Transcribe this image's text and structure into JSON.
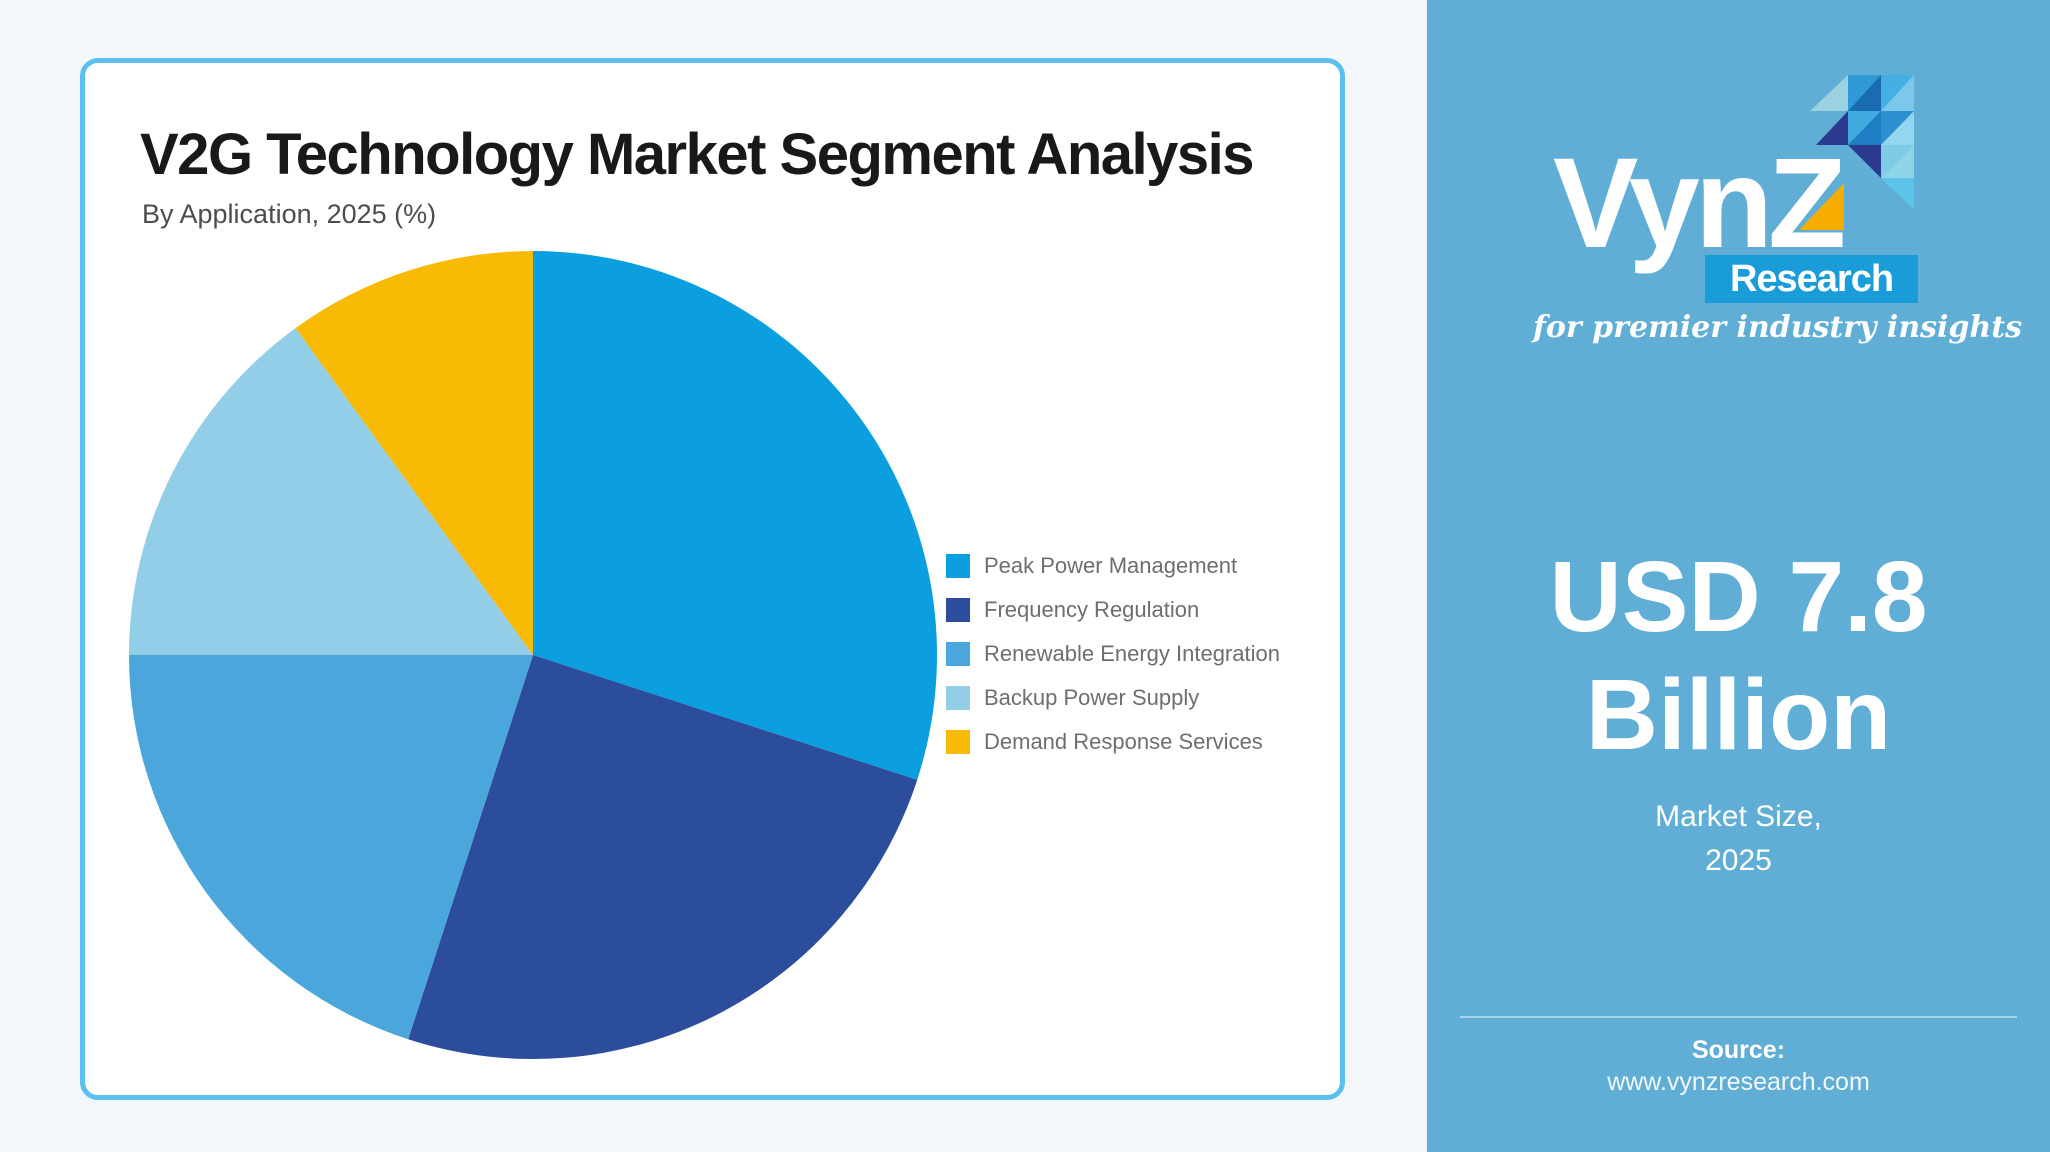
{
  "page": {
    "background": "#F4F7FA"
  },
  "card": {
    "border_color": "#5BC0EF"
  },
  "chart_data": {
    "type": "pie",
    "title": "V2G Technology Market Segment Analysis",
    "subtitle": "By Application, 2025 (%)",
    "unit": "%",
    "labels": [
      "Peak Power Management",
      "Frequency Regulation",
      "Renewable Energy Integration",
      "Backup Power Supply",
      "Demand Response Services"
    ],
    "values": [
      30,
      25,
      20,
      15,
      10
    ],
    "colors": [
      "#0C9FE0",
      "#2C4C9C",
      "#4BA7DB",
      "#93CEE9",
      "#F8BA05"
    ],
    "start_angle_deg": 0,
    "direction": "clockwise",
    "legend_position": "right",
    "legend_text_color": "#6e6e6e"
  },
  "sidebar": {
    "background": "#60AED5",
    "logo": {
      "name": "VynZ",
      "research_label": "Research",
      "tagline": "for premier industry insights",
      "research_box_color": "#199CD8",
      "accent_yellow": "#F7AC00",
      "mosaic_palette": [
        "#9AD3DF",
        "#2F9AD6",
        "#1A6CB0",
        "#45AEE3",
        "#7CC8EC",
        "#2B3A8F",
        "#3FA9E0",
        "#1F7DC4",
        "#2B8FD0",
        "#93D6F0",
        "#7ECBE8",
        "#8ED5EA",
        "#5BC4E8"
      ]
    },
    "market_value": "USD 7.8 Billion",
    "market_size_label_lines": [
      "Market Size,",
      "2025"
    ],
    "source_label": "Source:",
    "source_url": "www.vynzresearch.com"
  }
}
